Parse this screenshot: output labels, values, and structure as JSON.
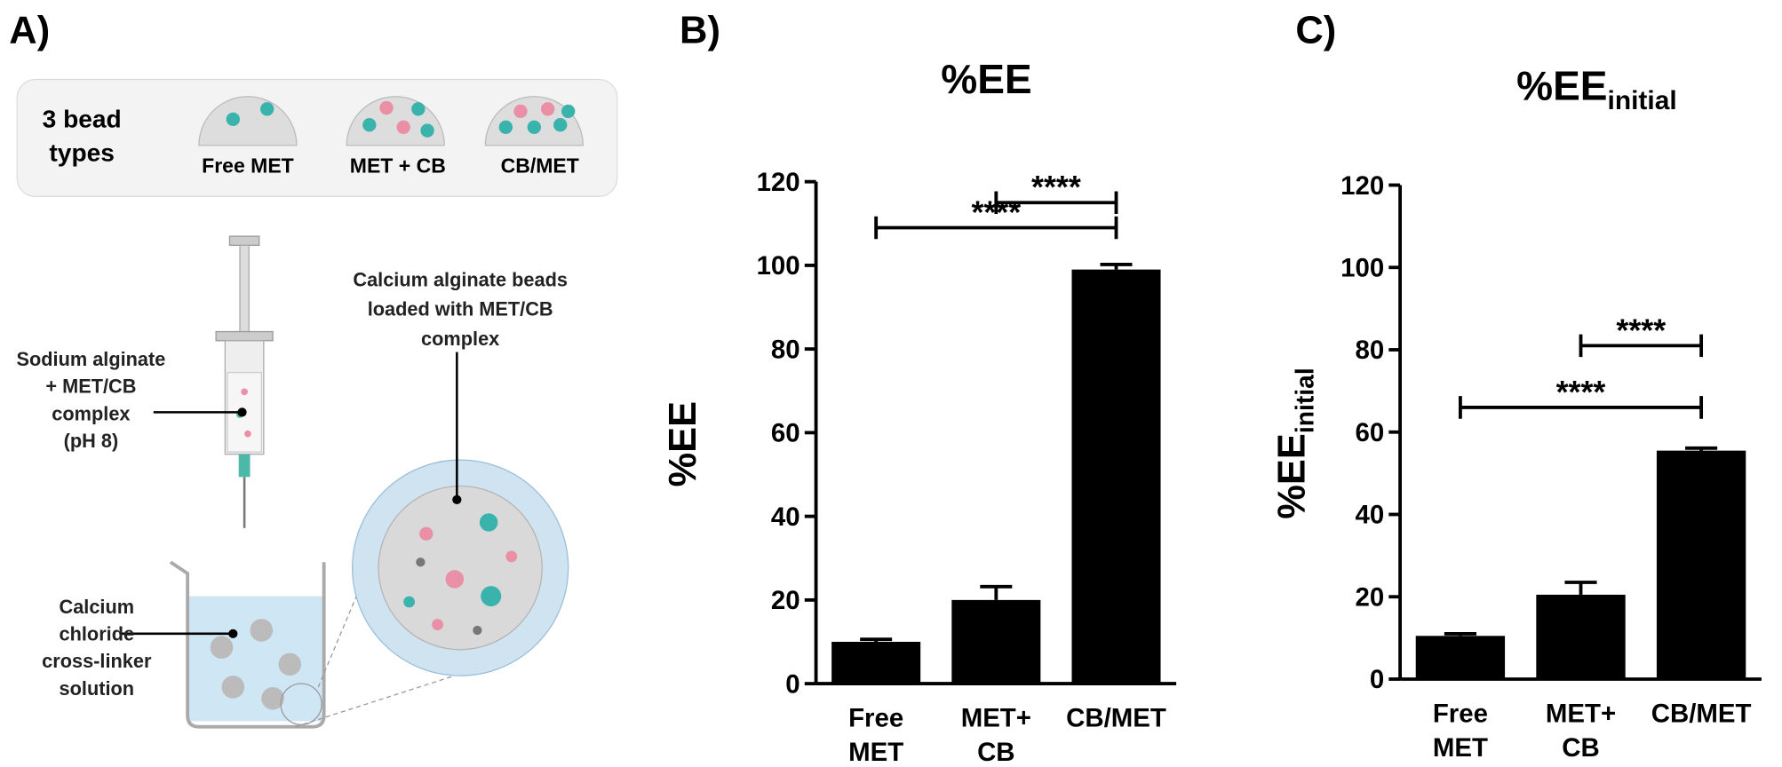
{
  "panel_a": {
    "label": "A)",
    "bead_box_title": [
      "3 bead",
      "types"
    ],
    "bead_types": [
      "Free MET",
      "MET + CB",
      "CB/MET"
    ],
    "syringe_label": [
      "Sodium alginate",
      "+  MET/CB",
      "complex",
      "(pH 8)"
    ],
    "beads_label": [
      "Calcium alginate beads",
      "loaded with MET/CB",
      "complex"
    ],
    "beaker_label": [
      "Calcium",
      "chloride",
      "cross-linker",
      "solution"
    ]
  },
  "chart_data": [
    {
      "type": "bar",
      "panel": "B)",
      "title": "%EE",
      "ylabel": "%EE",
      "categories": [
        "Free MET",
        "MET+ CB",
        "CB/MET"
      ],
      "values": [
        10,
        20,
        99
      ],
      "errors": [
        0.6,
        3.2,
        1.2
      ],
      "color": "#000000",
      "ylim": [
        0,
        120
      ],
      "yticks": [
        0,
        20,
        40,
        60,
        80,
        100,
        120
      ],
      "annotations": [
        {
          "text": "****",
          "from": 1,
          "to": 2,
          "y": 115
        },
        {
          "text": "****",
          "from": 0,
          "to": 2,
          "y": 109
        }
      ]
    },
    {
      "type": "bar",
      "panel": "C)",
      "title": "%EE",
      "title_sub": "initial",
      "ylabel": "%EE",
      "ylabel_sub": "initial",
      "categories": [
        "Free MET",
        "MET+ CB",
        "CB/MET"
      ],
      "values": [
        10.5,
        20.5,
        55.5
      ],
      "errors": [
        0.5,
        3,
        0.6
      ],
      "color": "#000000",
      "ylim": [
        0,
        120
      ],
      "yticks": [
        0,
        20,
        40,
        60,
        80,
        100,
        120
      ],
      "annotations": [
        {
          "text": "****",
          "from": 1,
          "to": 2,
          "y": 81
        },
        {
          "text": "****",
          "from": 0,
          "to": 2,
          "y": 66
        }
      ]
    }
  ]
}
